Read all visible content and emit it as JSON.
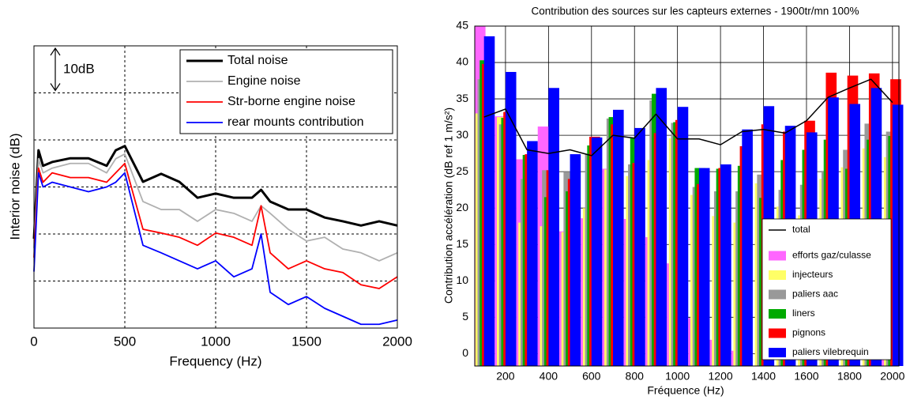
{
  "chart_data": [
    {
      "type": "line",
      "xlabel": "Frequency (Hz)",
      "ylabel": "Interior noise (dB)",
      "annotation": "10dB",
      "x": [
        0,
        25,
        50,
        100,
        200,
        300,
        400,
        450,
        500,
        600,
        700,
        800,
        900,
        1000,
        1100,
        1200,
        1250,
        1300,
        1400,
        1500,
        1600,
        1700,
        1800,
        1900,
        2000
      ],
      "xlim": [
        0,
        2000
      ],
      "xticks": [
        0,
        500,
        1000,
        1500,
        2000
      ],
      "ylim": [
        0,
        60
      ],
      "ygrid": [
        10,
        20,
        30,
        40,
        50
      ],
      "grid": true,
      "legend": "upper right",
      "series": [
        {
          "name": "Total noise",
          "color": "#000000",
          "width": 3,
          "values": [
            19,
            37.8,
            34.5,
            35.3,
            36.1,
            36.1,
            34.5,
            37.8,
            38.7,
            31.1,
            32.8,
            31.1,
            27.7,
            28.6,
            27.7,
            27.7,
            29.4,
            26.9,
            25.2,
            25.2,
            23.5,
            22.7,
            21.8,
            22.7,
            21.8
          ]
        },
        {
          "name": "Engine noise",
          "color": "#b0b0b0",
          "width": 1.8,
          "values": [
            17,
            36,
            33,
            34,
            35,
            35,
            33,
            36,
            37,
            26.9,
            25.2,
            25.2,
            22.7,
            25.2,
            24.4,
            22.7,
            26,
            24.4,
            21,
            18.5,
            19.3,
            16.8,
            16,
            14.3,
            16
          ]
        },
        {
          "name": "Str-borne engine noise",
          "color": "#ff0000",
          "width": 1.8,
          "values": [
            15,
            34,
            31,
            33,
            32,
            32,
            31,
            33,
            35,
            21,
            20.2,
            19.3,
            17.6,
            20.2,
            19.3,
            17.6,
            26,
            16,
            12.6,
            14.3,
            12.6,
            11.8,
            9.2,
            8.4,
            10.9
          ]
        },
        {
          "name": "rear mounts contribution",
          "color": "#0000ff",
          "width": 1.8,
          "values": [
            12,
            33,
            30,
            31,
            30,
            29,
            30,
            31,
            33,
            17.6,
            16,
            14.3,
            12.6,
            14.3,
            10.9,
            12.6,
            20,
            7.6,
            5,
            6.7,
            4.2,
            2.5,
            0.8,
            0.8,
            1.7
          ]
        }
      ]
    },
    {
      "type": "bar",
      "title": "Contribution des sources sur les capteurs externes - 1900tr/mn 100%",
      "xlabel": "Fréquence (Hz)",
      "ylabel": "Contribution accélération (dB ref 1 m/s²)",
      "x": [
        100,
        200,
        300,
        400,
        500,
        600,
        700,
        800,
        900,
        1000,
        1100,
        1200,
        1300,
        1400,
        1500,
        1600,
        1700,
        1800,
        1900,
        2000
      ],
      "xlim": [
        57,
        2030
      ],
      "xticks": [
        200,
        400,
        600,
        800,
        1000,
        1200,
        1400,
        1600,
        1800,
        2000
      ],
      "ylim": [
        -1.7,
        45
      ],
      "yticks": [
        0,
        5,
        10,
        15,
        20,
        25,
        30,
        35,
        40,
        45
      ],
      "grid": true,
      "legend": "lower right",
      "series": [
        {
          "name": "total",
          "type": "line",
          "color": "#000000",
          "values": [
            32.5,
            33.6,
            28,
            27.5,
            28,
            27.2,
            30,
            29.6,
            32.9,
            29.5,
            29.5,
            28.7,
            30.5,
            30.8,
            30.3,
            32,
            35.2,
            36.5,
            37.7,
            34.5
          ]
        },
        {
          "name": "efforts gaz/culasse",
          "color": "#ff66ff",
          "values": [
            45,
            32.6,
            26.7,
            31.2,
            16.8,
            18.6,
            25.4,
            18.5,
            16,
            12.4,
            4.9,
            1.9,
            0.4,
            null,
            null,
            null,
            null,
            null,
            null,
            13.1
          ]
        },
        {
          "name": "injecteurs",
          "color": "#ffff66",
          "values": [
            33,
            32.5,
            18,
            17.5,
            16.7,
            20,
            25.3,
            24.4,
            26.6,
            29.6,
            21.8,
            18.9,
            18,
            23.4,
            20.2,
            19,
            24,
            25.6,
            28.2,
            27
          ]
        },
        {
          "name": "paliers aac",
          "color": "#999999",
          "values": [
            37.7,
            31.5,
            24,
            25.2,
            25,
            27.4,
            32.3,
            26,
            34.8,
            31.7,
            22.9,
            22.3,
            22.3,
            24.6,
            22.5,
            23.2,
            25.1,
            28,
            31.6,
            30.5
          ]
        },
        {
          "name": "liners",
          "color": "#00aa00",
          "values": [
            40.3,
            32.4,
            27.3,
            21.5,
            22.3,
            28.6,
            32.5,
            29.7,
            35.7,
            31.8,
            25.5,
            25.4,
            25.8,
            21.4,
            26.6,
            28,
            29.4,
            25.4,
            29.4,
            29.9
          ]
        },
        {
          "name": "pignons",
          "color": "#ff0000",
          "values": [
            39.8,
            33.2,
            27.4,
            25.2,
            24,
            29.8,
            31.5,
            26.2,
            30.3,
            32.1,
            23.3,
            25.5,
            28.5,
            31.5,
            30.5,
            32,
            38.6,
            38.2,
            38.5,
            37.7
          ]
        },
        {
          "name": "paliers vilebrequin",
          "color": "#0000ff",
          "values": [
            43.6,
            38.7,
            29.2,
            36.5,
            27.4,
            29.7,
            33.5,
            31,
            36.5,
            33.9,
            25.5,
            26,
            30.8,
            34,
            31.3,
            30.4,
            35.2,
            34.3,
            36.5,
            34.2
          ]
        }
      ]
    }
  ]
}
